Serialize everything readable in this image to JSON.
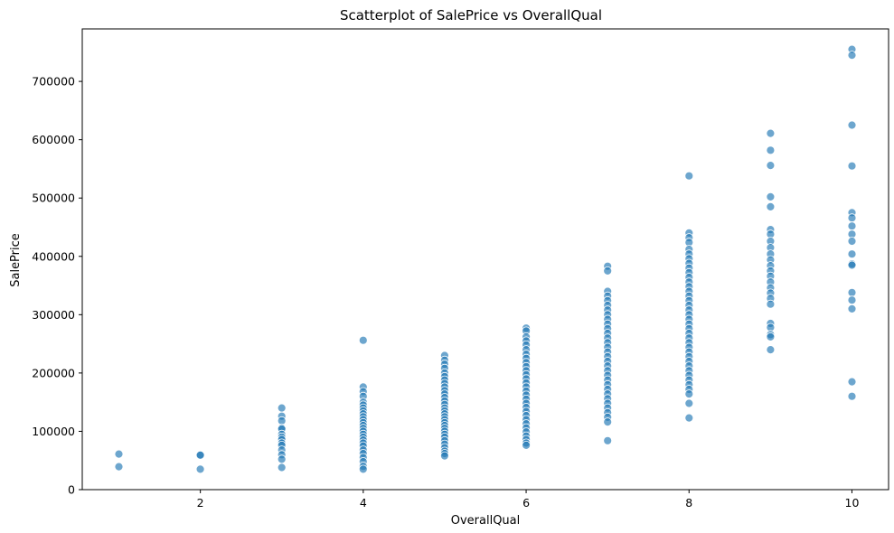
{
  "chart_data": {
    "type": "scatter",
    "title": "Scatterplot of SalePrice vs OverallQual",
    "xlabel": "OverallQual",
    "ylabel": "SalePrice",
    "xlim": [
      0.55,
      10.45
    ],
    "ylim": [
      0,
      790000
    ],
    "xticks": [
      2,
      4,
      6,
      8,
      10
    ],
    "yticks": [
      0,
      100000,
      200000,
      300000,
      400000,
      500000,
      600000,
      700000
    ],
    "grid": false,
    "legend": "none",
    "color": "#1f77b4",
    "opacity": 0.65,
    "points": [
      {
        "x": 1,
        "y": 61000
      },
      {
        "x": 1,
        "y": 39300
      },
      {
        "x": 2,
        "y": 60000
      },
      {
        "x": 2,
        "y": 59000
      },
      {
        "x": 2,
        "y": 35000
      },
      {
        "x": 3,
        "y": 140000
      },
      {
        "x": 3,
        "y": 126000
      },
      {
        "x": 3,
        "y": 118000
      },
      {
        "x": 3,
        "y": 106000
      },
      {
        "x": 3,
        "y": 104000
      },
      {
        "x": 3,
        "y": 95000
      },
      {
        "x": 3,
        "y": 90000
      },
      {
        "x": 3,
        "y": 86000
      },
      {
        "x": 3,
        "y": 80000
      },
      {
        "x": 3,
        "y": 76000
      },
      {
        "x": 3,
        "y": 68000
      },
      {
        "x": 3,
        "y": 60000
      },
      {
        "x": 3,
        "y": 52000
      },
      {
        "x": 3,
        "y": 38000
      },
      {
        "x": 4,
        "y": 256000
      },
      {
        "x": 4,
        "y": 176000
      },
      {
        "x": 4,
        "y": 168000
      },
      {
        "x": 4,
        "y": 160000
      },
      {
        "x": 4,
        "y": 150000
      },
      {
        "x": 4,
        "y": 145000
      },
      {
        "x": 4,
        "y": 140000
      },
      {
        "x": 4,
        "y": 135000
      },
      {
        "x": 4,
        "y": 130000
      },
      {
        "x": 4,
        "y": 125000
      },
      {
        "x": 4,
        "y": 120000
      },
      {
        "x": 4,
        "y": 115000
      },
      {
        "x": 4,
        "y": 110000
      },
      {
        "x": 4,
        "y": 105000
      },
      {
        "x": 4,
        "y": 100000
      },
      {
        "x": 4,
        "y": 95000
      },
      {
        "x": 4,
        "y": 90000
      },
      {
        "x": 4,
        "y": 85000
      },
      {
        "x": 4,
        "y": 80000
      },
      {
        "x": 4,
        "y": 75000
      },
      {
        "x": 4,
        "y": 68000
      },
      {
        "x": 4,
        "y": 62000
      },
      {
        "x": 4,
        "y": 55000
      },
      {
        "x": 4,
        "y": 48000
      },
      {
        "x": 4,
        "y": 40000
      },
      {
        "x": 4,
        "y": 35000
      },
      {
        "x": 5,
        "y": 230000
      },
      {
        "x": 5,
        "y": 222000
      },
      {
        "x": 5,
        "y": 215000
      },
      {
        "x": 5,
        "y": 208000
      },
      {
        "x": 5,
        "y": 200000
      },
      {
        "x": 5,
        "y": 194000
      },
      {
        "x": 5,
        "y": 188000
      },
      {
        "x": 5,
        "y": 182000
      },
      {
        "x": 5,
        "y": 176000
      },
      {
        "x": 5,
        "y": 170000
      },
      {
        "x": 5,
        "y": 164000
      },
      {
        "x": 5,
        "y": 158000
      },
      {
        "x": 5,
        "y": 152000
      },
      {
        "x": 5,
        "y": 146000
      },
      {
        "x": 5,
        "y": 140000
      },
      {
        "x": 5,
        "y": 135000
      },
      {
        "x": 5,
        "y": 130000
      },
      {
        "x": 5,
        "y": 125000
      },
      {
        "x": 5,
        "y": 120000
      },
      {
        "x": 5,
        "y": 115000
      },
      {
        "x": 5,
        "y": 110000
      },
      {
        "x": 5,
        "y": 105000
      },
      {
        "x": 5,
        "y": 100000
      },
      {
        "x": 5,
        "y": 95000
      },
      {
        "x": 5,
        "y": 90000
      },
      {
        "x": 5,
        "y": 84000
      },
      {
        "x": 5,
        "y": 78000
      },
      {
        "x": 5,
        "y": 72000
      },
      {
        "x": 5,
        "y": 66000
      },
      {
        "x": 5,
        "y": 62000
      },
      {
        "x": 5,
        "y": 58000
      },
      {
        "x": 6,
        "y": 277000
      },
      {
        "x": 6,
        "y": 272000
      },
      {
        "x": 6,
        "y": 262000
      },
      {
        "x": 6,
        "y": 255000
      },
      {
        "x": 6,
        "y": 248000
      },
      {
        "x": 6,
        "y": 240000
      },
      {
        "x": 6,
        "y": 232000
      },
      {
        "x": 6,
        "y": 225000
      },
      {
        "x": 6,
        "y": 218000
      },
      {
        "x": 6,
        "y": 211000
      },
      {
        "x": 6,
        "y": 204000
      },
      {
        "x": 6,
        "y": 197000
      },
      {
        "x": 6,
        "y": 190000
      },
      {
        "x": 6,
        "y": 183000
      },
      {
        "x": 6,
        "y": 176000
      },
      {
        "x": 6,
        "y": 169000
      },
      {
        "x": 6,
        "y": 162000
      },
      {
        "x": 6,
        "y": 155000
      },
      {
        "x": 6,
        "y": 148000
      },
      {
        "x": 6,
        "y": 141000
      },
      {
        "x": 6,
        "y": 134000
      },
      {
        "x": 6,
        "y": 127000
      },
      {
        "x": 6,
        "y": 120000
      },
      {
        "x": 6,
        "y": 113000
      },
      {
        "x": 6,
        "y": 106000
      },
      {
        "x": 6,
        "y": 99000
      },
      {
        "x": 6,
        "y": 92000
      },
      {
        "x": 6,
        "y": 86000
      },
      {
        "x": 6,
        "y": 80000
      },
      {
        "x": 6,
        "y": 76000
      },
      {
        "x": 7,
        "y": 383000
      },
      {
        "x": 7,
        "y": 375000
      },
      {
        "x": 7,
        "y": 340000
      },
      {
        "x": 7,
        "y": 332000
      },
      {
        "x": 7,
        "y": 324000
      },
      {
        "x": 7,
        "y": 316000
      },
      {
        "x": 7,
        "y": 308000
      },
      {
        "x": 7,
        "y": 300000
      },
      {
        "x": 7,
        "y": 292000
      },
      {
        "x": 7,
        "y": 284000
      },
      {
        "x": 7,
        "y": 276000
      },
      {
        "x": 7,
        "y": 268000
      },
      {
        "x": 7,
        "y": 260000
      },
      {
        "x": 7,
        "y": 252000
      },
      {
        "x": 7,
        "y": 244000
      },
      {
        "x": 7,
        "y": 236000
      },
      {
        "x": 7,
        "y": 228000
      },
      {
        "x": 7,
        "y": 220000
      },
      {
        "x": 7,
        "y": 212000
      },
      {
        "x": 7,
        "y": 204000
      },
      {
        "x": 7,
        "y": 196000
      },
      {
        "x": 7,
        "y": 188000
      },
      {
        "x": 7,
        "y": 180000
      },
      {
        "x": 7,
        "y": 172000
      },
      {
        "x": 7,
        "y": 164000
      },
      {
        "x": 7,
        "y": 156000
      },
      {
        "x": 7,
        "y": 148000
      },
      {
        "x": 7,
        "y": 140000
      },
      {
        "x": 7,
        "y": 132000
      },
      {
        "x": 7,
        "y": 124000
      },
      {
        "x": 7,
        "y": 116000
      },
      {
        "x": 7,
        "y": 84000
      },
      {
        "x": 8,
        "y": 538000
      },
      {
        "x": 8,
        "y": 440000
      },
      {
        "x": 8,
        "y": 432000
      },
      {
        "x": 8,
        "y": 424000
      },
      {
        "x": 8,
        "y": 412000
      },
      {
        "x": 8,
        "y": 404000
      },
      {
        "x": 8,
        "y": 396000
      },
      {
        "x": 8,
        "y": 388000
      },
      {
        "x": 8,
        "y": 380000
      },
      {
        "x": 8,
        "y": 372000
      },
      {
        "x": 8,
        "y": 364000
      },
      {
        "x": 8,
        "y": 356000
      },
      {
        "x": 8,
        "y": 348000
      },
      {
        "x": 8,
        "y": 340000
      },
      {
        "x": 8,
        "y": 332000
      },
      {
        "x": 8,
        "y": 324000
      },
      {
        "x": 8,
        "y": 316000
      },
      {
        "x": 8,
        "y": 308000
      },
      {
        "x": 8,
        "y": 300000
      },
      {
        "x": 8,
        "y": 292000
      },
      {
        "x": 8,
        "y": 284000
      },
      {
        "x": 8,
        "y": 276000
      },
      {
        "x": 8,
        "y": 268000
      },
      {
        "x": 8,
        "y": 260000
      },
      {
        "x": 8,
        "y": 252000
      },
      {
        "x": 8,
        "y": 244000
      },
      {
        "x": 8,
        "y": 236000
      },
      {
        "x": 8,
        "y": 228000
      },
      {
        "x": 8,
        "y": 220000
      },
      {
        "x": 8,
        "y": 212000
      },
      {
        "x": 8,
        "y": 204000
      },
      {
        "x": 8,
        "y": 196000
      },
      {
        "x": 8,
        "y": 188000
      },
      {
        "x": 8,
        "y": 180000
      },
      {
        "x": 8,
        "y": 172000
      },
      {
        "x": 8,
        "y": 164000
      },
      {
        "x": 8,
        "y": 148000
      },
      {
        "x": 8,
        "y": 123000
      },
      {
        "x": 9,
        "y": 611000
      },
      {
        "x": 9,
        "y": 582000
      },
      {
        "x": 9,
        "y": 556000
      },
      {
        "x": 9,
        "y": 502000
      },
      {
        "x": 9,
        "y": 485000
      },
      {
        "x": 9,
        "y": 446000
      },
      {
        "x": 9,
        "y": 438000
      },
      {
        "x": 9,
        "y": 426000
      },
      {
        "x": 9,
        "y": 415000
      },
      {
        "x": 9,
        "y": 404000
      },
      {
        "x": 9,
        "y": 394000
      },
      {
        "x": 9,
        "y": 384000
      },
      {
        "x": 9,
        "y": 375000
      },
      {
        "x": 9,
        "y": 366000
      },
      {
        "x": 9,
        "y": 356000
      },
      {
        "x": 9,
        "y": 346000
      },
      {
        "x": 9,
        "y": 337000
      },
      {
        "x": 9,
        "y": 328000
      },
      {
        "x": 9,
        "y": 318000
      },
      {
        "x": 9,
        "y": 285000
      },
      {
        "x": 9,
        "y": 278000
      },
      {
        "x": 9,
        "y": 266000
      },
      {
        "x": 9,
        "y": 262000
      },
      {
        "x": 9,
        "y": 240000
      },
      {
        "x": 10,
        "y": 755000
      },
      {
        "x": 10,
        "y": 745000
      },
      {
        "x": 10,
        "y": 625000
      },
      {
        "x": 10,
        "y": 555000
      },
      {
        "x": 10,
        "y": 475000
      },
      {
        "x": 10,
        "y": 466000
      },
      {
        "x": 10,
        "y": 452000
      },
      {
        "x": 10,
        "y": 438000
      },
      {
        "x": 10,
        "y": 426000
      },
      {
        "x": 10,
        "y": 404000
      },
      {
        "x": 10,
        "y": 387000
      },
      {
        "x": 10,
        "y": 385000
      },
      {
        "x": 10,
        "y": 338000
      },
      {
        "x": 10,
        "y": 325000
      },
      {
        "x": 10,
        "y": 310000
      },
      {
        "x": 10,
        "y": 185000
      },
      {
        "x": 10,
        "y": 160000
      }
    ]
  }
}
